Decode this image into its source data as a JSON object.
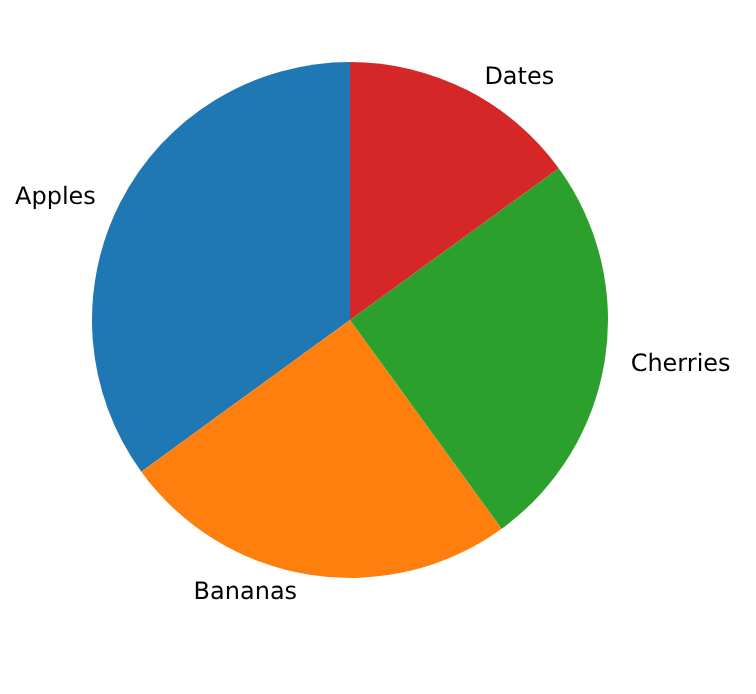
{
  "chart_data": {
    "type": "pie",
    "categories": [
      "Apples",
      "Bananas",
      "Cherries",
      "Dates"
    ],
    "values": [
      35,
      25,
      25,
      15
    ],
    "colors": [
      "#1f77b4",
      "#ff7f0e",
      "#2ca02c",
      "#d62728"
    ],
    "legend": false
  }
}
